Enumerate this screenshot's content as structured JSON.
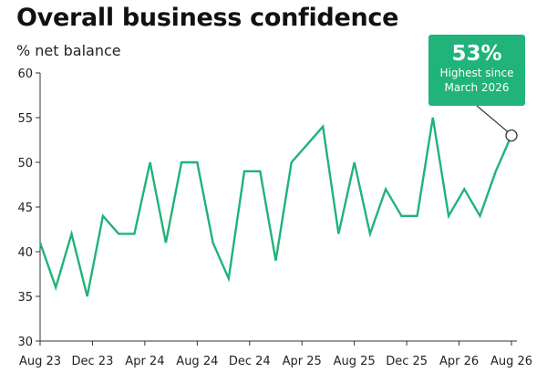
{
  "chart_data": {
    "type": "line",
    "title": "Overall business confidence",
    "ylabel": "% net balance",
    "xlabel": "",
    "ylim": [
      30,
      60
    ],
    "yticks": [
      30,
      35,
      40,
      45,
      50,
      55,
      60
    ],
    "x_tick_labels": [
      "Aug 23",
      "Dec 23",
      "Apr 24",
      "Aug 24",
      "Dec 24",
      "Apr 25",
      "Aug 25",
      "Dec 25",
      "Apr 26",
      "Aug 26"
    ],
    "grid": false,
    "line_color": "#20b37a",
    "series": [
      {
        "values": [
          41,
          36,
          42,
          35,
          44,
          42,
          42,
          50,
          41,
          50,
          50,
          41,
          37,
          49,
          49,
          39,
          50,
          52,
          54,
          42,
          50,
          42,
          47,
          44,
          44,
          55,
          44,
          47,
          44,
          49,
          53
        ]
      }
    ],
    "annotation": {
      "value": "53%",
      "line1": "Highest since",
      "line2": "March 2026",
      "color": "#20b37a"
    }
  }
}
